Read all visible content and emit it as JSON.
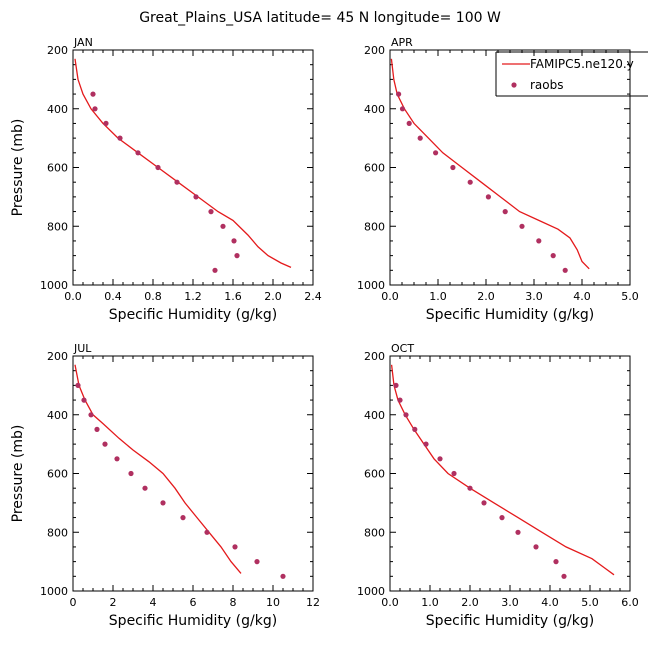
{
  "figure_title": "Great_Plains_USA  latitude= 45 N longitude= 100 W",
  "colors": {
    "model": "#e41a1c",
    "obs": "#b03060"
  },
  "legend": {
    "model_label": "FAMIPC5.ne120.y",
    "obs_label": "raobs"
  },
  "chart_data": [
    {
      "type": "line",
      "month": "JAN",
      "xlabel": "Specific Humidity (g/kg)",
      "ylabel": "Pressure (mb)",
      "xlim": [
        0,
        2.4
      ],
      "ylim": [
        1000,
        200
      ],
      "xticks": [
        "0.0",
        "0.4",
        "0.8",
        "1.2",
        "1.6",
        "2.0",
        "2.4"
      ],
      "yticks": [
        "200",
        "400",
        "600",
        "800",
        "1000"
      ],
      "series": [
        {
          "name": "FAMIPC5.ne120.y",
          "type": "line",
          "x": [
            0.02,
            0.05,
            0.1,
            0.18,
            0.3,
            0.45,
            0.65,
            0.85,
            1.05,
            1.25,
            1.45,
            1.6,
            1.75,
            1.85,
            1.95,
            2.08,
            2.18
          ],
          "y": [
            230,
            300,
            350,
            400,
            450,
            500,
            550,
            600,
            650,
            700,
            750,
            780,
            830,
            870,
            900,
            925,
            940
          ]
        },
        {
          "name": "raobs",
          "type": "scatter",
          "x": [
            0.2,
            0.22,
            0.33,
            0.47,
            0.65,
            0.85,
            1.04,
            1.23,
            1.38,
            1.5,
            1.61,
            1.64,
            1.42
          ],
          "y": [
            350,
            400,
            450,
            500,
            550,
            600,
            650,
            700,
            750,
            800,
            850,
            900,
            950
          ]
        }
      ]
    },
    {
      "type": "line",
      "month": "APR",
      "xlabel": "Specific Humidity (g/kg)",
      "ylabel": "",
      "xlim": [
        0,
        5.0
      ],
      "ylim": [
        1000,
        200
      ],
      "xticks": [
        "0.0",
        "1.0",
        "2.0",
        "3.0",
        "4.0",
        "5.0"
      ],
      "yticks": [
        "200",
        "400",
        "600",
        "800",
        "1000"
      ],
      "series": [
        {
          "name": "FAMIPC5.ne120.y",
          "type": "line",
          "x": [
            0.03,
            0.08,
            0.15,
            0.3,
            0.5,
            0.8,
            1.1,
            1.5,
            1.9,
            2.3,
            2.7,
            3.1,
            3.5,
            3.75,
            3.9,
            4.0,
            4.15
          ],
          "y": [
            230,
            300,
            350,
            400,
            450,
            500,
            550,
            600,
            650,
            700,
            750,
            780,
            810,
            840,
            880,
            920,
            945
          ]
        },
        {
          "name": "raobs",
          "type": "scatter",
          "x": [
            0.18,
            0.26,
            0.4,
            0.63,
            0.95,
            1.31,
            1.67,
            2.05,
            2.4,
            2.75,
            3.1,
            3.4,
            3.65
          ],
          "y": [
            350,
            400,
            450,
            500,
            550,
            600,
            650,
            700,
            750,
            800,
            850,
            900,
            950
          ]
        }
      ]
    },
    {
      "type": "line",
      "month": "JUL",
      "xlabel": "Specific Humidity (g/kg)",
      "ylabel": "Pressure (mb)",
      "xlim": [
        0,
        12
      ],
      "ylim": [
        1000,
        200
      ],
      "xticks": [
        "0",
        "2",
        "4",
        "6",
        "8",
        "10",
        "12"
      ],
      "yticks": [
        "200",
        "400",
        "600",
        "800",
        "1000"
      ],
      "series": [
        {
          "name": "FAMIPC5.ne120.y",
          "type": "line",
          "x": [
            0.1,
            0.3,
            0.6,
            1.0,
            1.5,
            2.3,
            3.0,
            3.8,
            4.5,
            5.1,
            5.6,
            6.2,
            6.8,
            7.4,
            7.9,
            8.4
          ],
          "y": [
            230,
            300,
            350,
            400,
            430,
            480,
            520,
            560,
            600,
            650,
            700,
            750,
            800,
            850,
            900,
            940
          ]
        },
        {
          "name": "raobs",
          "type": "scatter",
          "x": [
            0.25,
            0.55,
            0.9,
            1.2,
            1.6,
            2.2,
            2.9,
            3.6,
            4.5,
            5.5,
            6.7,
            8.1,
            9.2,
            10.5
          ],
          "y": [
            300,
            350,
            400,
            450,
            500,
            550,
            600,
            650,
            700,
            750,
            800,
            850,
            900,
            950
          ]
        }
      ]
    },
    {
      "type": "line",
      "month": "OCT",
      "xlabel": "Specific Humidity (g/kg)",
      "ylabel": "",
      "xlim": [
        0,
        6.0
      ],
      "ylim": [
        1000,
        200
      ],
      "xticks": [
        "0.0",
        "1.0",
        "2.0",
        "3.0",
        "4.0",
        "5.0",
        "6.0"
      ],
      "yticks": [
        "200",
        "400",
        "600",
        "800",
        "1000"
      ],
      "series": [
        {
          "name": "FAMIPC5.ne120.y",
          "type": "line",
          "x": [
            0.04,
            0.1,
            0.2,
            0.38,
            0.6,
            0.85,
            1.1,
            1.45,
            2.0,
            2.6,
            3.2,
            3.8,
            4.4,
            5.05,
            5.35,
            5.6
          ],
          "y": [
            230,
            300,
            350,
            400,
            450,
            500,
            550,
            600,
            650,
            700,
            750,
            800,
            850,
            890,
            920,
            945
          ]
        },
        {
          "name": "raobs",
          "type": "scatter",
          "x": [
            0.15,
            0.25,
            0.4,
            0.62,
            0.9,
            1.25,
            1.6,
            2.0,
            2.35,
            2.8,
            3.2,
            3.65,
            4.15,
            4.35
          ],
          "y": [
            300,
            350,
            400,
            450,
            500,
            550,
            600,
            650,
            700,
            750,
            800,
            850,
            900,
            950
          ]
        }
      ]
    }
  ]
}
